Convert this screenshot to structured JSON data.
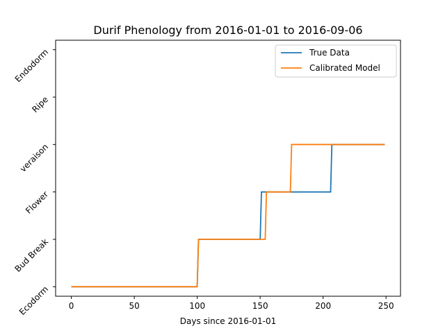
{
  "chart_data": {
    "type": "line",
    "title": "Durif Phenology from 2016-01-01 to 2016-09-06",
    "xlabel": "Days since 2016-01-01",
    "ylabel": "",
    "xlim": [
      -12.5,
      261.5
    ],
    "ylim": [
      -0.2,
      5.2
    ],
    "xticks": [
      0,
      50,
      100,
      150,
      200,
      250
    ],
    "ytick_labels": [
      "Ecodorm",
      "Bud Break",
      "Flower",
      "veraison",
      "Ripe",
      "Endodorm"
    ],
    "grid": false,
    "legend_position": "top-right",
    "series": [
      {
        "name": "True Data",
        "color": "#1f77b4",
        "x": [
          0,
          100,
          101,
          150,
          151,
          206,
          207,
          249
        ],
        "y": [
          0,
          0,
          1,
          1,
          2,
          2,
          3,
          3
        ]
      },
      {
        "name": "Calibrated Model",
        "color": "#ff7f0e",
        "x": [
          0,
          100,
          101,
          154,
          155,
          174,
          175,
          249
        ],
        "y": [
          0,
          0,
          1,
          1,
          2,
          2,
          3,
          3
        ]
      }
    ]
  }
}
